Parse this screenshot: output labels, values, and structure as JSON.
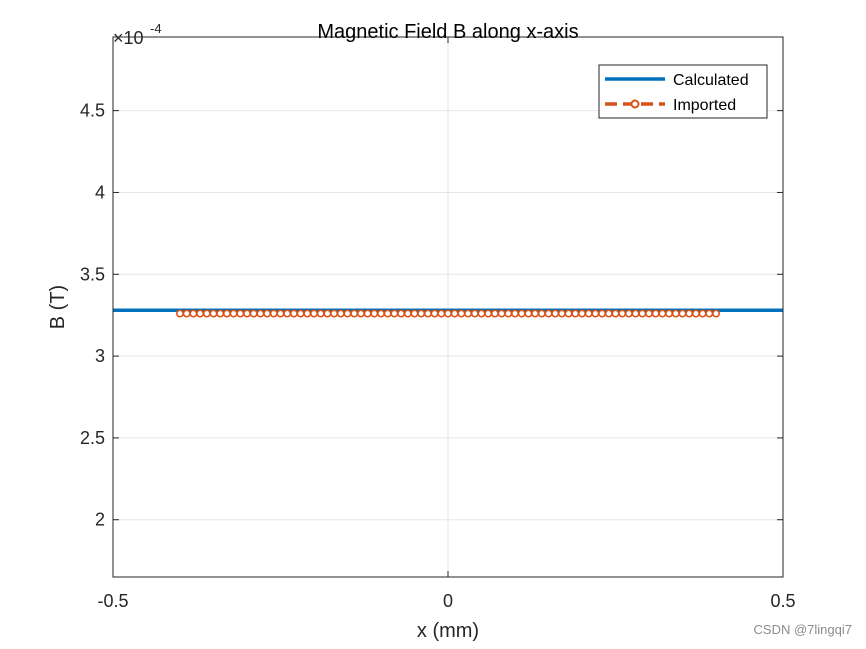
{
  "chart_data": {
    "type": "line",
    "title": "Magnetic Field B along x-axis",
    "xlabel": "x (mm)",
    "ylabel": "B (T)",
    "xlim": [
      -0.5,
      0.5
    ],
    "ylim": [
      1.65,
      4.95
    ],
    "y_multiplier_base": "×10",
    "y_multiplier_exponent": "-4",
    "x_ticks": [
      -0.5,
      0,
      0.5
    ],
    "x_tick_labels": [
      "-0.5",
      "0",
      "0.5"
    ],
    "y_ticks": [
      2,
      2.5,
      3,
      3.5,
      4,
      4.5
    ],
    "y_tick_labels": [
      "2",
      "2.5",
      "3",
      "3.5",
      "4",
      "4.5"
    ],
    "grid": true,
    "legend_position": "top-right",
    "series": [
      {
        "name": "Calculated",
        "color": "#0072BD",
        "style": "solid",
        "marker": "none",
        "x": [
          -0.5,
          0.5
        ],
        "y": [
          3.28,
          3.28
        ]
      },
      {
        "name": "Imported",
        "color": "#D95319",
        "style": "dashed",
        "marker": "circle",
        "x_start": -0.4,
        "x_end": 0.4,
        "point_count": 81,
        "y_constant": 3.26
      }
    ]
  },
  "watermark": "CSDN @7lingqi7"
}
